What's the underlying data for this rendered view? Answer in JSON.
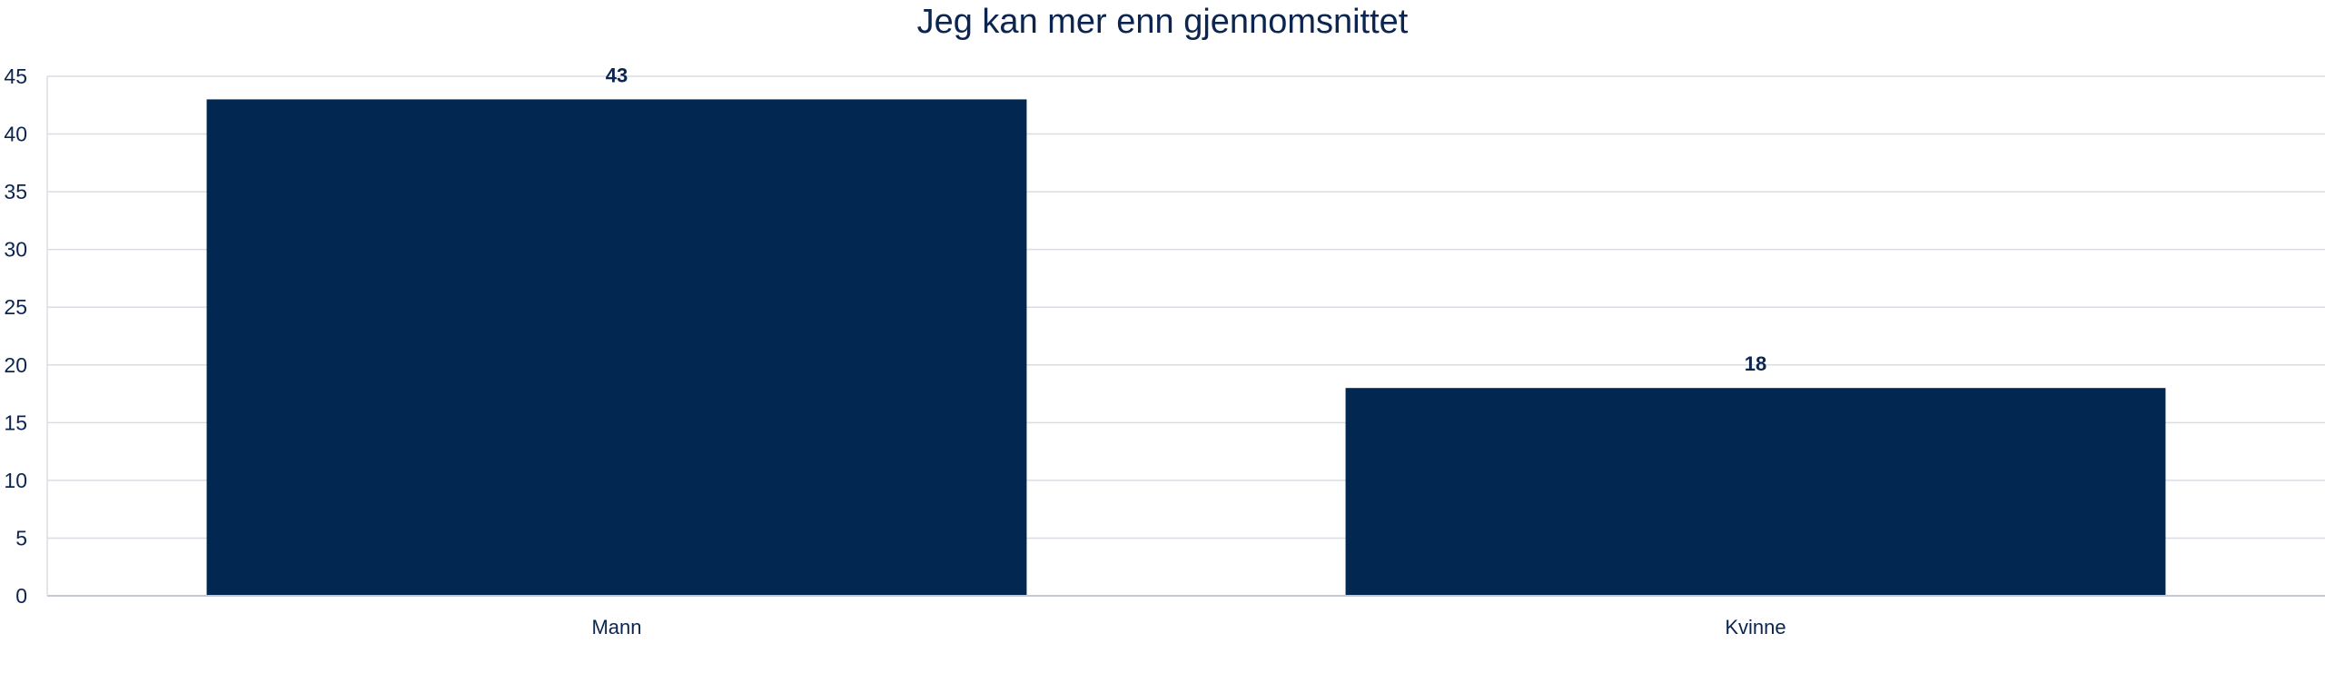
{
  "chart_data": {
    "type": "bar",
    "title": "Jeg kan mer enn gjennomsnittet",
    "xlabel": "",
    "ylabel": "",
    "categories": [
      "Mann",
      "Kvinne"
    ],
    "values": [
      43,
      18
    ],
    "value_labels": [
      "43",
      "18"
    ],
    "ylim": [
      0,
      45
    ],
    "yticks": [
      "0",
      "5",
      "10",
      "15",
      "20",
      "25",
      "30",
      "35",
      "40",
      "45"
    ],
    "grid": true,
    "legend": "none",
    "colors": {
      "bar": "#022751",
      "grid": "#d9dde3",
      "axis": "#c4c9d1",
      "text": "#0b2550"
    }
  }
}
